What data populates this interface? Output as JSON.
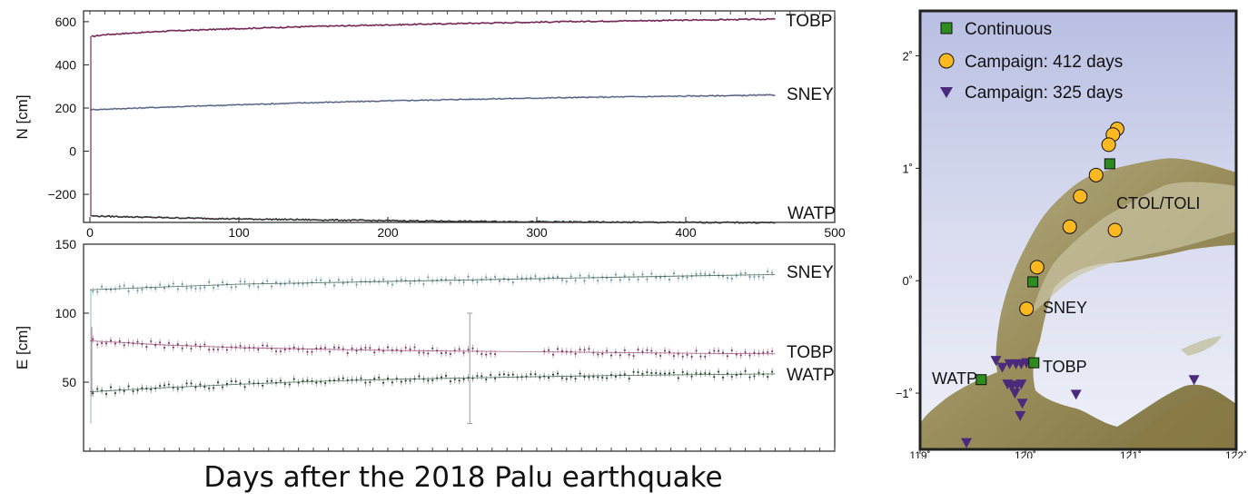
{
  "caption": "Days after the 2018 Palu earthquake",
  "colors": {
    "TOBP": "#7a2f5e",
    "SNEY": "#5f8fa6",
    "WATP": "#1d3d2a",
    "errorbar": "#9a9a9a",
    "land_low": "#8a7a45",
    "land_high": "#b8b08a",
    "sea": "#c7cde8"
  },
  "chart_data": [
    {
      "type": "scatter",
      "ylabel": "N [cm]",
      "xlim": [
        0,
        500
      ],
      "ylim": [
        -330,
        650
      ],
      "xticks": [
        0,
        100,
        200,
        300,
        400,
        500
      ],
      "yticks": [
        -200,
        0,
        200,
        400,
        600
      ],
      "ytick_labels": [
        "−200",
        "0",
        "200",
        "400",
        "600"
      ],
      "series": [
        {
          "name": "TOBP",
          "x": [
            0,
            10,
            50,
            100,
            150,
            200,
            250,
            300,
            350,
            400,
            460
          ],
          "y": [
            530,
            540,
            556,
            568,
            578,
            585,
            592,
            598,
            603,
            607,
            612
          ]
        },
        {
          "name": "SNEY",
          "x": [
            0,
            50,
            100,
            150,
            200,
            250,
            300,
            350,
            400,
            460
          ],
          "y": [
            192,
            204,
            215,
            225,
            233,
            240,
            246,
            251,
            255,
            260
          ]
        },
        {
          "name": "WATP",
          "x": [
            0,
            50,
            100,
            150,
            200,
            250,
            300,
            350,
            400,
            460
          ],
          "y": [
            -300,
            -308,
            -314,
            -318,
            -322,
            -325,
            -327,
            -329,
            -330,
            -331
          ]
        }
      ]
    },
    {
      "type": "scatter",
      "ylabel": "E [cm]",
      "xlim": [
        0,
        500
      ],
      "ylim": [
        0,
        150
      ],
      "yticks": [
        50,
        100,
        150
      ],
      "series": [
        {
          "name": "SNEY",
          "x": [
            0,
            50,
            100,
            150,
            200,
            250,
            300,
            350,
            400,
            460
          ],
          "y": [
            117,
            119,
            121,
            122,
            123,
            124,
            125,
            126,
            127,
            128
          ]
        },
        {
          "name": "TOBP",
          "x": [
            0,
            50,
            100,
            150,
            200,
            250,
            300,
            350,
            400,
            460
          ],
          "y": [
            80,
            77,
            75,
            74,
            73,
            72.5,
            72,
            71.5,
            71,
            70.5
          ]
        },
        {
          "name": "WATP",
          "x": [
            0,
            50,
            100,
            150,
            200,
            250,
            300,
            350,
            400,
            460
          ],
          "y": [
            43,
            46,
            48.5,
            50.5,
            52,
            53,
            54,
            54.8,
            55.4,
            56
          ]
        }
      ]
    },
    {
      "type": "scatter",
      "xlim": [
        119,
        122
      ],
      "ylim": [
        -1.5,
        2.4
      ],
      "xtick_labels": [
        "119˚",
        "120˚",
        "121˚",
        "122˚"
      ],
      "ytick_labels": [
        "−1˚",
        "0˚",
        "1˚",
        "2˚"
      ],
      "legend": [
        "Continuous",
        "Campaign: 412 days",
        "Campaign: 325 days"
      ],
      "legend_position": "top-left",
      "continuous": [
        {
          "name": "CTOL/TOLI",
          "lon": 120.8,
          "lat": 1.04
        },
        {
          "name": "SNEY",
          "lon": 120.07,
          "lat": -0.01
        },
        {
          "name": "TOBP",
          "lon": 120.08,
          "lat": -0.73
        },
        {
          "name": "WATP",
          "lon": 119.58,
          "lat": -0.88
        }
      ],
      "campaign_412": [
        {
          "lon": 120.87,
          "lat": 1.35
        },
        {
          "lon": 120.83,
          "lat": 1.3
        },
        {
          "lon": 120.79,
          "lat": 1.21
        },
        {
          "lon": 120.67,
          "lat": 0.94
        },
        {
          "lon": 120.52,
          "lat": 0.75
        },
        {
          "lon": 120.42,
          "lat": 0.48
        },
        {
          "lon": 120.85,
          "lat": 0.45
        },
        {
          "lon": 120.11,
          "lat": 0.12
        },
        {
          "lon": 120.01,
          "lat": -0.25
        }
      ],
      "campaign_325": [
        {
          "lon": 119.72,
          "lat": -0.71
        },
        {
          "lon": 119.78,
          "lat": -0.77
        },
        {
          "lon": 119.85,
          "lat": -0.74
        },
        {
          "lon": 119.91,
          "lat": -0.74
        },
        {
          "lon": 119.96,
          "lat": -0.74
        },
        {
          "lon": 120.01,
          "lat": -0.73
        },
        {
          "lon": 119.83,
          "lat": -0.92
        },
        {
          "lon": 119.87,
          "lat": -0.94
        },
        {
          "lon": 119.92,
          "lat": -0.93
        },
        {
          "lon": 119.96,
          "lat": -0.92
        },
        {
          "lon": 119.9,
          "lat": -1.0
        },
        {
          "lon": 119.97,
          "lat": -1.09
        },
        {
          "lon": 119.95,
          "lat": -1.2
        },
        {
          "lon": 120.48,
          "lat": -1.01
        },
        {
          "lon": 121.6,
          "lat": -0.88
        },
        {
          "lon": 119.44,
          "lat": -1.44
        }
      ]
    }
  ]
}
